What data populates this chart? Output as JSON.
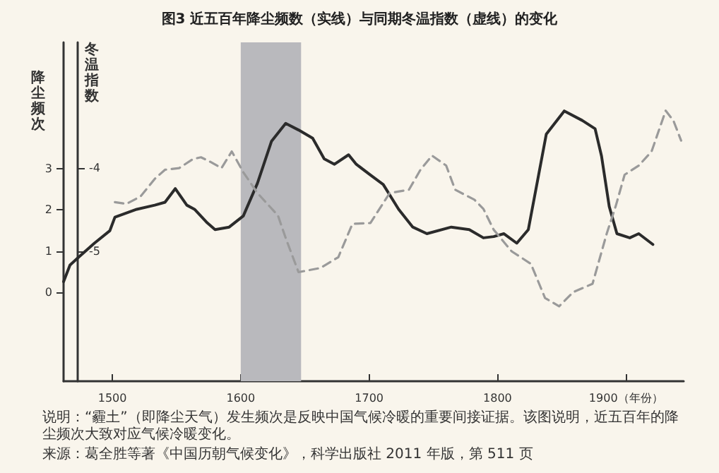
{
  "chart_data": {
    "type": "line",
    "title": "图3 近五百年降尘频数（实线）与同期冬温指数（虚线）的变化",
    "ylabel": "降尘频次",
    "y2label": "冬温指数",
    "xlim": [
      1462,
      1945
    ],
    "xticks": [
      1500,
      1600,
      1700,
      1800,
      {
        "value": 1900,
        "label": "1900（年份）"
      }
    ],
    "ylim": [
      -2.15,
      6.05
    ],
    "yticks": [
      0,
      1,
      2,
      3
    ],
    "y2lim": [
      -6.56,
      -2.49
    ],
    "y2ticks": [
      -5,
      -4
    ],
    "marker": "none",
    "bands": [
      {
        "axis": "x",
        "from": 1600,
        "to": 1647,
        "color": "#b9b9bd"
      }
    ],
    "series": [
      {
        "color": "#2b2b2b",
        "line_style": "solid",
        "x": [
          1462,
          1467,
          1473,
          1486,
          1498,
          1502,
          1519,
          1533,
          1541,
          1549,
          1558,
          1564,
          1574,
          1580,
          1591,
          1602,
          1613,
          1624,
          1635,
          1645,
          1656,
          1665,
          1673,
          1684,
          1690,
          1701,
          1711,
          1723,
          1734,
          1745,
          1764,
          1778,
          1789,
          1797,
          1805,
          1815,
          1824,
          1832,
          1838,
          1852,
          1866,
          1876,
          1881,
          1887,
          1893,
          1903,
          1910,
          1921
        ],
        "values": [
          0.26,
          0.66,
          0.83,
          1.19,
          1.49,
          1.82,
          2.01,
          2.11,
          2.18,
          2.51,
          2.11,
          2.01,
          1.68,
          1.52,
          1.58,
          1.85,
          2.64,
          3.66,
          4.09,
          3.93,
          3.73,
          3.23,
          3.1,
          3.33,
          3.1,
          2.84,
          2.61,
          2.01,
          1.58,
          1.42,
          1.58,
          1.52,
          1.32,
          1.35,
          1.42,
          1.19,
          1.52,
          2.84,
          3.83,
          4.39,
          4.16,
          3.96,
          3.3,
          2.08,
          1.42,
          1.32,
          1.42,
          1.16
        ]
      },
      {
        "color": "#9a9a9a",
        "line_style": "dashed",
        "axis": "y2",
        "x": [
          1502,
          1511,
          1522,
          1533,
          1541,
          1552,
          1563,
          1569,
          1577,
          1585,
          1593,
          1602,
          1613,
          1629,
          1635,
          1645,
          1662,
          1676,
          1687,
          1701,
          1716,
          1731,
          1740,
          1749,
          1760,
          1767,
          1782,
          1789,
          1797,
          1811,
          1826,
          1837,
          1848,
          1859,
          1874,
          1885,
          1892,
          1899,
          1910,
          1920,
          1931,
          1937,
          1943
        ],
        "values": [
          -4.41,
          -4.43,
          -4.34,
          -4.13,
          -4.02,
          -4.0,
          -3.89,
          -3.87,
          -3.93,
          -4.0,
          -3.8,
          -4.05,
          -4.3,
          -4.57,
          -4.84,
          -5.25,
          -5.2,
          -5.07,
          -4.67,
          -4.66,
          -4.3,
          -4.26,
          -4.02,
          -3.85,
          -3.97,
          -4.26,
          -4.38,
          -4.49,
          -4.74,
          -5.0,
          -5.15,
          -5.56,
          -5.66,
          -5.49,
          -5.39,
          -4.79,
          -4.46,
          -4.08,
          -3.97,
          -3.8,
          -3.31,
          -3.43,
          -3.67
        ]
      }
    ],
    "annotations": [
      "说明：“霾土”（即降尘天气）发生频次是反映中国气候冷暖的重要间接证据。该图说明，近五百年的降尘频次大致对应气候冷暖变化。",
      "来源：葛全胜等著《中国历朝气候变化》，科学出版社 2011 年版，第 511 页"
    ]
  }
}
